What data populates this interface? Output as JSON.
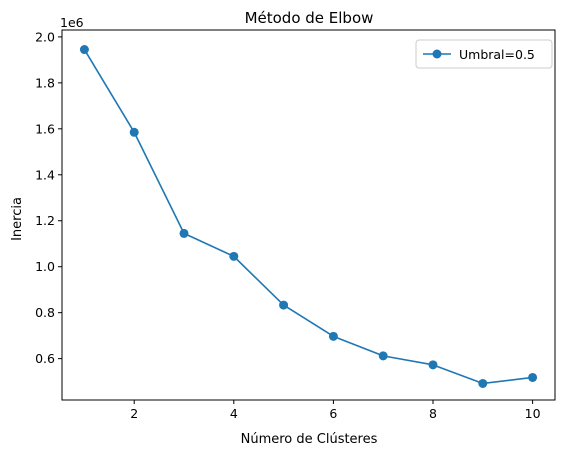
{
  "chart_data": {
    "type": "line",
    "title": "Método de Elbow",
    "xlabel": "Número de Clústeres",
    "ylabel": "Inercia",
    "y_offset_label": "1e6",
    "y_scale_factor": 1000000,
    "xlim": [
      0.55,
      10.45
    ],
    "ylim": [
      420000,
      2030000
    ],
    "x_ticks": [
      2,
      4,
      6,
      8,
      10
    ],
    "x_tick_labels": [
      "2",
      "4",
      "6",
      "8",
      "10"
    ],
    "y_ticks": [
      600000,
      800000,
      1000000,
      1200000,
      1400000,
      1600000,
      1800000,
      2000000
    ],
    "y_tick_labels": [
      "0.6",
      "0.8",
      "1.0",
      "1.2",
      "1.4",
      "1.6",
      "1.8",
      "2.0"
    ],
    "grid": false,
    "legend_position": "upper right",
    "series": [
      {
        "name": "Umbral=0.5",
        "color": "#1f77b4",
        "marker": "circle",
        "x": [
          1,
          2,
          3,
          4,
          5,
          6,
          7,
          8,
          9,
          10
        ],
        "values": [
          1945000,
          1585000,
          1145000,
          1045000,
          833000,
          697000,
          612000,
          573000,
          492000,
          518000
        ]
      }
    ]
  }
}
